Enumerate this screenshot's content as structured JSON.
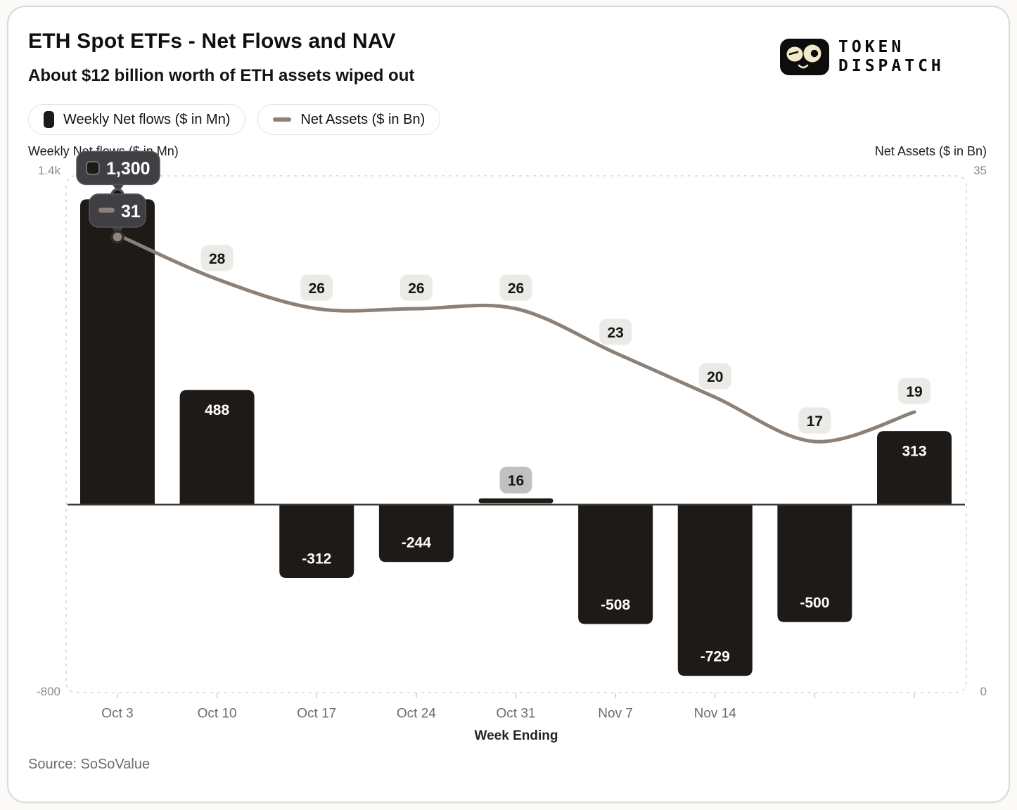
{
  "header": {
    "title": "ETH Spot ETFs - Net Flows and NAV",
    "subtitle": "About $12 billion worth of ETH assets wiped out"
  },
  "logo": {
    "line1": "TOKEN",
    "line2": "DISPATCH"
  },
  "legend": {
    "items": [
      {
        "label": "Weekly Net flows ($ in Mn)",
        "swatch": "bar",
        "color": "#1e1a17"
      },
      {
        "label": "Net Assets ($ in Bn)",
        "swatch": "line",
        "color": "#8b8178"
      }
    ]
  },
  "axes": {
    "left_title": "Weekly Net flows ($ in Mn)",
    "left_max_label": "1.4k",
    "left_min_label": "-800",
    "right_title": "Net Assets ($ in Bn)",
    "right_max_label": "35",
    "right_min_label": "0",
    "x_title": "Week Ending"
  },
  "source": "Source: SoSoValue",
  "colors": {
    "bar": "#1e1a17",
    "line": "#8b8178",
    "pill_light_bg": "#ebeae7",
    "pill_gray_bg": "#c2c0be",
    "tooltip_bg": "#403f43",
    "tooltip_border": "#56555a",
    "zero_line": "#3f3b37",
    "plot_border": "#d8d6d3",
    "tick": "#cfcdca",
    "x_label": "#6d6b68"
  },
  "chart_data": {
    "type": "bar",
    "combo": "bar+line dual-axis",
    "title": "ETH Spot ETFs - Net Flows and NAV",
    "xlabel": "Week Ending",
    "grid": false,
    "legend_position": "top-left",
    "categories": [
      "Oct 3",
      "Oct 10",
      "Oct 17",
      "Oct 24",
      "Oct 31",
      "Nov 7",
      "Nov 14",
      "",
      ""
    ],
    "series": [
      {
        "name": "Weekly Net flows ($ in Mn)",
        "type": "bar",
        "axis": "left",
        "values": [
          1300,
          488,
          -312,
          -244,
          16,
          -508,
          -729,
          -500,
          313
        ]
      },
      {
        "name": "Net Assets ($ in Bn)",
        "type": "line",
        "axis": "right",
        "values": [
          31,
          28,
          26,
          26,
          26,
          23,
          20,
          17,
          19
        ]
      }
    ],
    "bar_labels": [
      "1,300",
      "488",
      "-312",
      "-244",
      "16",
      "-508",
      "-729",
      "-500",
      "313"
    ],
    "line_point_labels": [
      "31",
      "28",
      "26",
      "26",
      "26",
      "23",
      "20",
      "17",
      "19"
    ],
    "left_axis": {
      "label": "Weekly Net flows ($ in Mn)",
      "min": -800,
      "max": 1400
    },
    "right_axis": {
      "label": "Net Assets ($ in Bn)",
      "min": 0,
      "max": 35
    },
    "tooltips": [
      {
        "series": "bar",
        "index": 0,
        "label": "1,300"
      },
      {
        "series": "line",
        "index": 0,
        "label": "31"
      }
    ]
  }
}
